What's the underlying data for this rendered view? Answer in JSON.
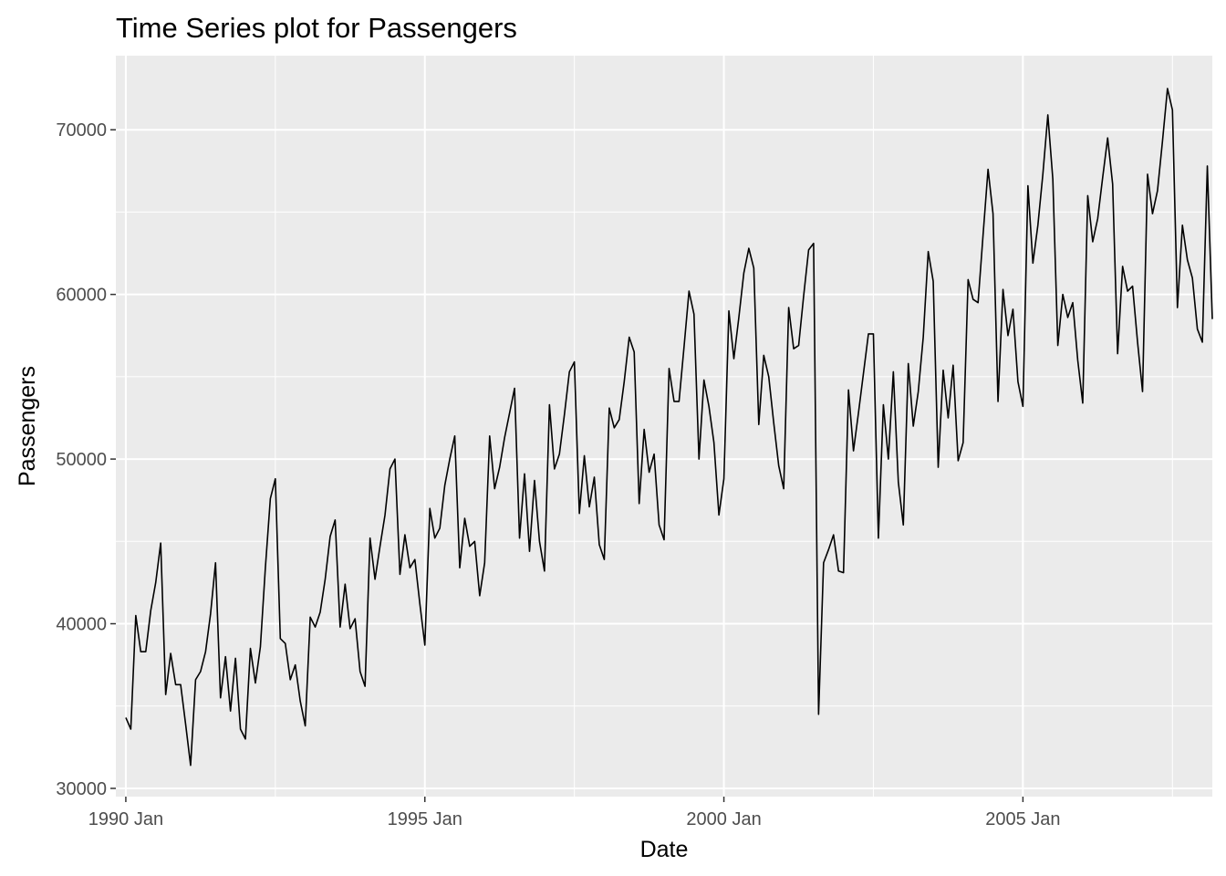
{
  "chart_data": {
    "type": "line",
    "title": "Time Series plot for Passengers",
    "xlabel": "Date",
    "ylabel": "Passengers",
    "ylim": [
      29500,
      74500
    ],
    "xlim": [
      "1989-11-01",
      "2008-03-01"
    ],
    "grid": true,
    "y_ticks": [
      30000,
      40000,
      50000,
      60000,
      70000
    ],
    "y_tick_labels": [
      "30000",
      "40000",
      "50000",
      "60000",
      "70000"
    ],
    "x_ticks": [
      "1990-01",
      "1995-01",
      "2000-01",
      "2005-01"
    ],
    "x_tick_labels": [
      "1990 Jan",
      "1995 Jan",
      "2000 Jan",
      "2005 Jan"
    ],
    "colors": {
      "panel": "#ebebeb",
      "grid": "#ffffff",
      "line": "#000000",
      "tick_text": "#4d4d4d"
    },
    "series": [
      {
        "x": [
          "1990-01",
          "1990-02",
          "1990-03",
          "1990-04",
          "1990-05",
          "1990-06",
          "1990-07",
          "1990-08",
          "1990-09",
          "1990-10",
          "1990-11",
          "1990-12",
          "1991-01",
          "1991-02",
          "1991-03",
          "1991-04",
          "1991-05",
          "1991-06",
          "1991-07",
          "1991-08",
          "1991-09",
          "1991-10",
          "1991-11",
          "1991-12",
          "1992-01",
          "1992-02",
          "1992-03",
          "1992-04",
          "1992-05",
          "1992-06",
          "1992-07",
          "1992-08",
          "1992-09",
          "1992-10",
          "1992-11",
          "1992-12",
          "1993-01",
          "1993-02",
          "1993-03",
          "1993-04",
          "1993-05",
          "1993-06",
          "1993-07",
          "1993-08",
          "1993-09",
          "1993-10",
          "1993-11",
          "1993-12",
          "1994-01",
          "1994-02",
          "1994-03",
          "1994-04",
          "1994-05",
          "1994-06",
          "1994-07",
          "1994-08",
          "1994-09",
          "1994-10",
          "1994-11",
          "1994-12",
          "1995-01",
          "1995-02",
          "1995-03",
          "1995-04",
          "1995-05",
          "1995-06",
          "1995-07",
          "1995-08",
          "1995-09",
          "1995-10",
          "1995-11",
          "1995-12",
          "1996-01",
          "1996-02",
          "1996-03",
          "1996-04",
          "1996-05",
          "1996-06",
          "1996-07",
          "1996-08",
          "1996-09",
          "1996-10",
          "1996-11",
          "1996-12",
          "1997-01",
          "1997-02",
          "1997-03",
          "1997-04",
          "1997-05",
          "1997-06",
          "1997-07",
          "1997-08",
          "1997-09",
          "1997-10",
          "1997-11",
          "1997-12",
          "1998-01",
          "1998-02",
          "1998-03",
          "1998-04",
          "1998-05",
          "1998-06",
          "1998-07",
          "1998-08",
          "1998-09",
          "1998-10",
          "1998-11",
          "1998-12",
          "1999-01",
          "1999-02",
          "1999-03",
          "1999-04",
          "1999-05",
          "1999-06",
          "1999-07",
          "1999-08",
          "1999-09",
          "1999-10",
          "1999-11",
          "1999-12",
          "2000-01",
          "2000-02",
          "2000-03",
          "2000-04",
          "2000-05",
          "2000-06",
          "2000-07",
          "2000-08",
          "2000-09",
          "2000-10",
          "2000-11",
          "2000-12",
          "2001-01",
          "2001-02",
          "2001-03",
          "2001-04",
          "2001-05",
          "2001-06",
          "2001-07",
          "2001-08",
          "2001-09",
          "2001-10",
          "2001-11",
          "2001-12",
          "2002-01",
          "2002-02",
          "2002-03",
          "2002-04",
          "2002-05",
          "2002-06",
          "2002-07",
          "2002-08",
          "2002-09",
          "2002-10",
          "2002-11",
          "2002-12",
          "2003-01",
          "2003-02",
          "2003-03",
          "2003-04",
          "2003-05",
          "2003-06",
          "2003-07",
          "2003-08",
          "2003-09",
          "2003-10",
          "2003-11",
          "2003-12",
          "2004-01",
          "2004-02",
          "2004-03",
          "2004-04",
          "2004-05",
          "2004-06",
          "2004-07",
          "2004-08",
          "2004-09",
          "2004-10",
          "2004-11",
          "2004-12",
          "2005-01",
          "2005-02",
          "2005-03",
          "2005-04",
          "2005-05",
          "2005-06",
          "2005-07",
          "2005-08",
          "2005-09",
          "2005-10",
          "2005-11",
          "2005-12",
          "2006-01",
          "2006-02",
          "2006-03",
          "2006-04",
          "2006-05",
          "2006-06",
          "2006-07",
          "2006-08",
          "2006-09",
          "2006-10",
          "2006-11",
          "2006-12",
          "2007-01",
          "2007-02",
          "2007-03",
          "2007-04",
          "2007-05",
          "2007-06",
          "2007-07",
          "2007-08",
          "2007-09",
          "2007-10",
          "2007-11",
          "2007-12",
          "2008-01",
          "2008-02",
          "2008-03"
        ],
        "values": [
          34300,
          33600,
          40500,
          38300,
          38300,
          40800,
          42500,
          44900,
          35700,
          38200,
          36300,
          36300,
          33900,
          31400,
          36600,
          37100,
          38300,
          40600,
          43700,
          35500,
          38000,
          34700,
          37900,
          33600,
          33000,
          38500,
          36400,
          38600,
          43400,
          47600,
          48800,
          39100,
          38800,
          36600,
          37500,
          35300,
          33800,
          40400,
          39800,
          40700,
          42700,
          45300,
          46300,
          39800,
          42400,
          39700,
          40300,
          37100,
          36200,
          45200,
          42700,
          44700,
          46600,
          49400,
          50000,
          43000,
          45400,
          43400,
          43900,
          41200,
          38700,
          47000,
          45200,
          45800,
          48400,
          50000,
          51400,
          43400,
          46400,
          44700,
          45000,
          41700,
          43700,
          51400,
          48200,
          49500,
          51300,
          52800,
          54300,
          45200,
          49100,
          44400,
          48700,
          45000,
          43200,
          53300,
          49400,
          50300,
          52700,
          55300,
          55900,
          46700,
          50200,
          47100,
          48900,
          44800,
          43900,
          53100,
          51900,
          52400,
          54700,
          57400,
          56500,
          47300,
          51800,
          49200,
          50300,
          46000,
          45100,
          55500,
          53500,
          53500,
          56800,
          60200,
          58800,
          50000,
          54800,
          53200,
          51000,
          46600,
          48800,
          59000,
          56100,
          58600,
          61300,
          62800,
          61600,
          52100,
          56300,
          55000,
          52200,
          49600,
          48200,
          59200,
          56700,
          56900,
          59900,
          62700,
          63100,
          34500,
          43700,
          44500,
          45400,
          43200,
          43100,
          54200,
          50500,
          52800,
          55200,
          57600,
          57600,
          45200,
          53300,
          50000,
          55300,
          48600,
          46000,
          55800,
          52000,
          54100,
          57400,
          62600,
          60800,
          49500,
          55400,
          52500,
          55700,
          49900,
          51000,
          60900,
          59700,
          59500,
          63600,
          67600,
          64900,
          53500,
          60300,
          57500,
          59100,
          54700,
          53200,
          66600,
          61900,
          64200,
          67300,
          70900,
          67000,
          56900,
          60000,
          58600,
          59500,
          56000,
          53400,
          66000,
          63200,
          64600,
          67100,
          69500,
          66700,
          56400,
          61700,
          60200,
          60500,
          57100,
          54100,
          67300,
          64900,
          66300,
          69300,
          72500,
          71200,
          59200,
          64200,
          62100,
          61000,
          57900,
          57100,
          67800,
          58500
        ]
      }
    ]
  }
}
